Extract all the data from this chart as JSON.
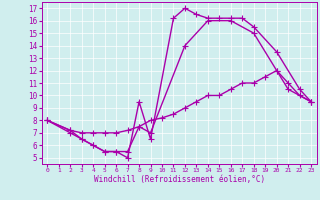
{
  "xlabel": "Windchill (Refroidissement éolien,°C)",
  "bg_color": "#d0eeee",
  "line_color": "#aa00aa",
  "xlim": [
    -0.5,
    23.5
  ],
  "ylim": [
    4.5,
    17.5
  ],
  "xticks": [
    0,
    1,
    2,
    3,
    4,
    5,
    6,
    7,
    8,
    9,
    10,
    11,
    12,
    13,
    14,
    15,
    16,
    17,
    18,
    19,
    20,
    21,
    22,
    23
  ],
  "yticks": [
    5,
    6,
    7,
    8,
    9,
    10,
    11,
    12,
    13,
    14,
    15,
    16,
    17
  ],
  "line1_x": [
    0,
    2,
    3,
    4,
    5,
    6,
    7,
    8,
    9,
    11,
    12,
    13,
    14,
    15,
    16,
    17,
    18,
    20,
    22,
    23
  ],
  "line1_y": [
    8,
    7,
    6.5,
    6,
    5.5,
    5.5,
    5,
    9.5,
    6.5,
    16.2,
    17,
    16.5,
    16.2,
    16.2,
    16.2,
    16.2,
    15.5,
    13.5,
    10.5,
    9.5
  ],
  "line2_x": [
    0,
    2,
    3,
    4,
    5,
    6,
    7,
    8,
    9,
    10,
    11,
    12,
    13,
    14,
    15,
    16,
    17,
    18,
    19,
    20,
    21,
    22,
    23
  ],
  "line2_y": [
    8,
    7.2,
    7,
    7,
    7,
    7,
    7.2,
    7.5,
    8,
    8.2,
    8.5,
    9,
    9.5,
    10,
    10,
    10.5,
    11,
    11,
    11.5,
    12,
    11,
    10,
    9.5
  ],
  "line3_x": [
    0,
    2,
    3,
    4,
    5,
    6,
    7,
    8,
    9,
    12,
    14,
    16,
    18,
    20,
    21,
    23
  ],
  "line3_y": [
    8,
    7.2,
    6.5,
    6,
    5.5,
    5.5,
    5.5,
    7.5,
    7,
    14,
    16,
    16,
    15,
    12,
    10.5,
    9.5
  ],
  "marker": "+",
  "marker_size": 4,
  "linewidth": 1.0
}
